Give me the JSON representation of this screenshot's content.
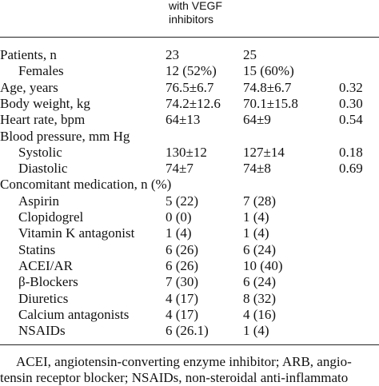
{
  "header": {
    "lines": [
      "with VEGF",
      "inhibitors"
    ]
  },
  "table": {
    "rows": [
      [
        "Patients, n",
        "23",
        "25"
      ],
      [
        "Females",
        "12 (52%)",
        "15 (60%)"
      ],
      [
        "Age, years",
        "76.5±6.7",
        "74.8±6.7",
        "0.32"
      ],
      [
        "Body weight, kg",
        "74.2±12.6",
        "70.1±15.8",
        "0.30"
      ],
      [
        "Heart rate, bpm",
        "64±13",
        "64±9",
        "0.54"
      ],
      [
        "Blood pressure, mm Hg"
      ],
      [
        "Systolic",
        "130±12",
        "127±14",
        "0.18"
      ],
      [
        "Diastolic",
        "74±7",
        "74±8",
        "0.69"
      ],
      [
        "Concomitant medication, n (%)"
      ],
      [
        "Aspirin",
        "5 (22)",
        "7 (28)"
      ],
      [
        "Clopidogrel",
        "0 (0)",
        "1 (4)"
      ],
      [
        "Vitamin K antagonist",
        "1 (4)",
        "1 (4)"
      ],
      [
        "Statins",
        "6 (26)",
        "6 (24)"
      ],
      [
        "ACEI/AR",
        "6 (26)",
        "10 (40)"
      ],
      [
        "β-Blockers",
        "7 (30)",
        "6 (24)"
      ],
      [
        "Diuretics",
        "4 (17)",
        "8 (32)"
      ],
      [
        "Calcium antagonists",
        "4 (17)",
        "4 (16)"
      ],
      [
        "NSAIDs",
        "6 (26.1)",
        "1 (4)"
      ]
    ]
  },
  "footnote": {
    "lines": [
      "ACEI, angiotensin-converting enzyme inhibitor; ARB, angio-",
      "tensin receptor blocker; NSAIDs, non-steroidal anti-inflammato"
    ]
  }
}
